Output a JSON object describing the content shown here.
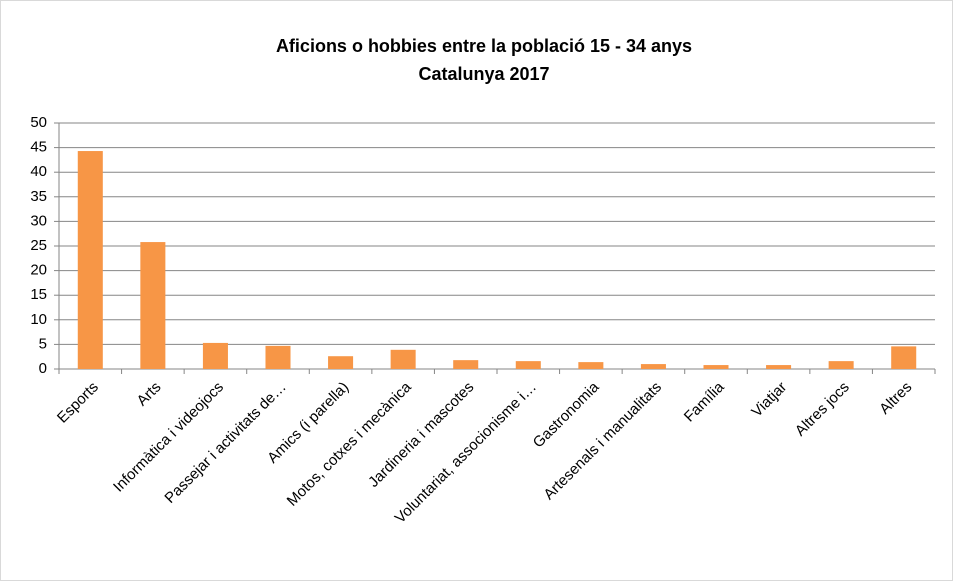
{
  "chart_data": {
    "type": "bar",
    "title": "Aficions o hobbies entre la població 15 - 34 anys",
    "subtitle": "Catalunya 2017",
    "categories": [
      "Esports",
      "Arts",
      "Informàtica i videojocs",
      "Passejar i activitats de…",
      "Amics (i parella)",
      "Motos, cotxes i mecànica",
      "Jardineria i mascotes",
      "Voluntariat, associonisme i…",
      "Gastronomia",
      "Artesenals i manualitats",
      "Família",
      "Viatjar",
      "Altres jocs",
      "Altres"
    ],
    "values": [
      44.3,
      25.8,
      5.3,
      4.7,
      2.6,
      3.9,
      1.8,
      1.6,
      1.4,
      1.0,
      0.8,
      0.8,
      1.6,
      4.6
    ],
    "color": "#f79646",
    "ylim": [
      0,
      50
    ],
    "yticks": [
      0,
      5,
      10,
      15,
      20,
      25,
      30,
      35,
      40,
      45,
      50
    ],
    "grid": true
  }
}
